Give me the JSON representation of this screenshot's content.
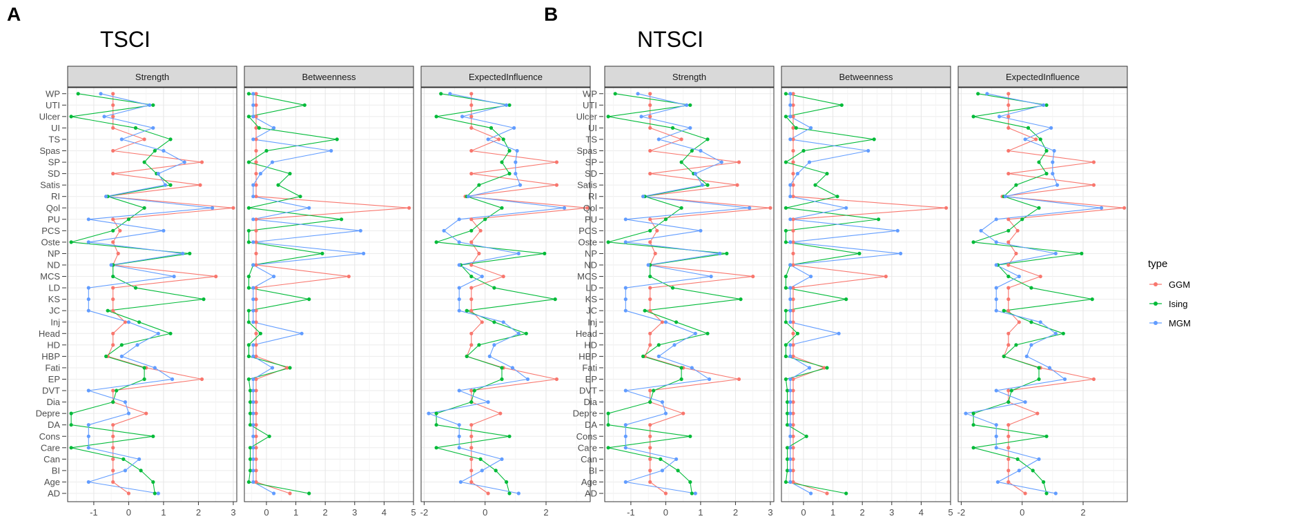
{
  "chart_data": {
    "type": "line",
    "row_labels": [
      "AD",
      "Age",
      "BI",
      "Can",
      "Care",
      "Cons",
      "DA",
      "Depre",
      "Dia",
      "DVT",
      "EP",
      "Fati",
      "HBP",
      "HD",
      "Head",
      "Inj",
      "JC",
      "KS",
      "LD",
      "MCS",
      "ND",
      "NP",
      "Oste",
      "PCS",
      "PU",
      "Qol",
      "RI",
      "Satis",
      "SD",
      "SP",
      "Spas",
      "TS",
      "UI",
      "Ulcer",
      "UTI",
      "WP"
    ],
    "series": [
      {
        "name": "GGM",
        "color": "#F8766D"
      },
      {
        "name": "Ising",
        "color": "#00BA38"
      },
      {
        "name": "MGM",
        "color": "#619CFF"
      }
    ],
    "legend_title": "type",
    "legend_position": "right",
    "plots": [
      {
        "letter": "A",
        "title": "TSCI",
        "facets": [
          {
            "name": "Strength",
            "xlim": [
              -1.75,
              3.1
            ],
            "xticks": [
              -1,
              0,
              1,
              2,
              3
            ],
            "values": {
              "GGM": [
                0.0,
                -0.45,
                -0.45,
                -0.45,
                -0.45,
                -0.45,
                -0.45,
                0.5,
                -0.45,
                -0.45,
                2.1,
                0.5,
                -0.6,
                -0.45,
                -0.45,
                -0.1,
                -0.45,
                -0.45,
                -0.45,
                2.5,
                -0.45,
                -0.3,
                -0.45,
                -0.25,
                -0.45,
                3.0,
                -0.65,
                2.05,
                -0.45,
                2.1,
                -0.45,
                0.45,
                -0.45,
                -0.45,
                -0.45,
                -0.45
              ],
              "Ising": [
                0.75,
                0.7,
                0.35,
                -0.15,
                -1.65,
                0.7,
                -1.65,
                -1.65,
                -0.45,
                -0.35,
                0.45,
                0.45,
                -0.65,
                -0.2,
                1.2,
                0.3,
                -0.6,
                2.15,
                0.2,
                -0.45,
                -0.45,
                1.75,
                -1.65,
                -0.45,
                0.0,
                0.45,
                -0.6,
                1.2,
                0.8,
                0.45,
                0.75,
                1.2,
                0.2,
                -1.65,
                0.7,
                -1.45
              ],
              "MGM": [
                0.85,
                -1.15,
                -0.1,
                0.3,
                -1.15,
                -1.15,
                -1.15,
                0.0,
                -0.1,
                -1.15,
                1.25,
                0.75,
                -0.2,
                0.25,
                0.85,
                0.0,
                -1.15,
                -1.15,
                -1.15,
                1.3,
                -0.5,
                1.55,
                -1.15,
                1.0,
                -1.15,
                2.4,
                -0.65,
                1.05,
                0.85,
                1.6,
                1.0,
                -0.2,
                0.7,
                -0.7,
                0.6,
                -0.8
              ]
            }
          },
          {
            "name": "Betweenness",
            "xlim": [
              -0.75,
              5.0
            ],
            "xticks": [
              0,
              1,
              2,
              3,
              4,
              5
            ],
            "values": {
              "GGM": [
                0.8,
                -0.35,
                -0.35,
                -0.35,
                -0.35,
                -0.35,
                -0.35,
                -0.35,
                -0.35,
                -0.35,
                -0.35,
                0.7,
                -0.35,
                -0.35,
                -0.35,
                -0.35,
                -0.35,
                -0.35,
                -0.35,
                2.8,
                -0.35,
                -0.35,
                -0.35,
                -0.35,
                -0.35,
                4.85,
                -0.35,
                -0.35,
                -0.35,
                -0.35,
                -0.35,
                -0.35,
                -0.35,
                -0.35,
                -0.35,
                -0.35
              ],
              "Ising": [
                1.45,
                -0.6,
                -0.55,
                -0.55,
                -0.55,
                0.1,
                -0.55,
                -0.55,
                -0.55,
                -0.55,
                -0.6,
                0.8,
                -0.6,
                -0.6,
                -0.2,
                -0.6,
                -0.6,
                1.45,
                -0.6,
                -0.6,
                -0.45,
                1.9,
                -0.6,
                -0.6,
                2.55,
                -0.6,
                1.15,
                0.4,
                0.8,
                -0.6,
                0.0,
                2.4,
                -0.25,
                -0.6,
                1.3,
                -0.6
              ],
              "MGM": [
                0.25,
                -0.45,
                -0.45,
                -0.45,
                -0.45,
                -0.45,
                -0.45,
                -0.45,
                -0.45,
                -0.45,
                -0.45,
                0.2,
                -0.45,
                -0.45,
                1.2,
                -0.45,
                -0.45,
                -0.45,
                -0.45,
                0.25,
                -0.45,
                3.3,
                -0.45,
                3.2,
                -0.45,
                1.45,
                -0.45,
                -0.45,
                -0.2,
                0.2,
                2.2,
                -0.45,
                0.25,
                -0.45,
                -0.45,
                -0.45
              ]
            }
          },
          {
            "name": "ExpectedInfluence",
            "xlim": [
              -2.1,
              3.45
            ],
            "xticks": [
              -2,
              0,
              2
            ],
            "values": {
              "GGM": [
                0.1,
                -0.45,
                -0.45,
                -0.45,
                -0.45,
                -0.45,
                -0.45,
                0.5,
                -0.45,
                -0.45,
                2.35,
                0.6,
                -0.6,
                -0.45,
                -0.45,
                -0.1,
                -0.45,
                -0.45,
                -0.45,
                0.6,
                -0.45,
                -0.2,
                -0.45,
                -0.15,
                -0.45,
                3.35,
                -0.65,
                2.35,
                -0.45,
                2.35,
                -0.45,
                0.45,
                -0.45,
                -0.45,
                -0.45,
                -0.45
              ],
              "Ising": [
                0.8,
                0.7,
                0.35,
                -0.15,
                -1.6,
                0.8,
                -1.6,
                -1.6,
                -0.45,
                -0.35,
                0.55,
                0.55,
                -0.6,
                -0.2,
                1.35,
                0.3,
                -0.6,
                2.3,
                0.3,
                -0.45,
                -0.8,
                1.95,
                -1.6,
                -0.45,
                0.0,
                0.55,
                -0.6,
                -0.2,
                0.8,
                0.55,
                0.8,
                0.6,
                0.2,
                -1.6,
                0.8,
                -1.45
              ],
              "MGM": [
                1.1,
                -0.8,
                -0.1,
                0.55,
                -0.85,
                -0.85,
                -0.85,
                -1.85,
                0.1,
                -0.85,
                1.4,
                0.9,
                0.15,
                0.3,
                1.1,
                0.6,
                -0.85,
                -0.85,
                -0.85,
                -0.1,
                -0.85,
                1.1,
                -0.85,
                -1.35,
                -0.85,
                2.6,
                -0.55,
                1.15,
                1.0,
                1.0,
                1.05,
                0.1,
                0.95,
                -0.75,
                0.7,
                -1.15
              ]
            }
          }
        ]
      },
      {
        "letter": "B",
        "title": "NTSCI",
        "facets": [
          {
            "name": "Strength",
            "xlim": [
              -1.75,
              3.1
            ],
            "xticks": [
              -1,
              0,
              1,
              2,
              3
            ],
            "values": {
              "GGM": [
                0.0,
                -0.45,
                -0.45,
                -0.45,
                -0.45,
                -0.45,
                -0.45,
                0.5,
                -0.45,
                -0.45,
                2.1,
                0.5,
                -0.6,
                -0.45,
                -0.45,
                -0.1,
                -0.45,
                -0.45,
                -0.45,
                2.5,
                -0.45,
                -0.3,
                -0.45,
                -0.25,
                -0.45,
                3.0,
                -0.65,
                2.05,
                -0.45,
                2.1,
                -0.45,
                0.45,
                -0.45,
                -0.45,
                -0.45,
                -0.45
              ],
              "Ising": [
                0.75,
                0.7,
                0.35,
                -0.15,
                -1.65,
                0.7,
                -1.65,
                -1.65,
                -0.45,
                -0.35,
                0.45,
                0.45,
                -0.65,
                -0.2,
                1.2,
                0.3,
                -0.6,
                2.15,
                0.2,
                -0.45,
                -0.45,
                1.75,
                -1.65,
                -0.45,
                0.0,
                0.45,
                -0.6,
                1.2,
                0.8,
                0.45,
                0.75,
                1.2,
                0.2,
                -1.65,
                0.7,
                -1.45
              ],
              "MGM": [
                0.85,
                -1.15,
                -0.1,
                0.3,
                -1.15,
                -1.15,
                -1.15,
                0.0,
                -0.1,
                -1.15,
                1.25,
                0.75,
                -0.2,
                0.25,
                0.85,
                0.0,
                -1.15,
                -1.15,
                -1.15,
                1.3,
                -0.5,
                1.55,
                -1.15,
                1.0,
                -1.15,
                2.4,
                -0.65,
                1.05,
                0.85,
                1.6,
                1.0,
                -0.2,
                0.7,
                -0.7,
                0.6,
                -0.8
              ]
            }
          },
          {
            "name": "Betweenness",
            "xlim": [
              -0.75,
              5.0
            ],
            "xticks": [
              0,
              1,
              2,
              3,
              4,
              5
            ],
            "values": {
              "GGM": [
                0.8,
                -0.35,
                -0.35,
                -0.35,
                -0.35,
                -0.35,
                -0.35,
                -0.35,
                -0.35,
                -0.35,
                -0.35,
                0.7,
                -0.35,
                -0.35,
                -0.35,
                -0.35,
                -0.35,
                -0.35,
                -0.35,
                2.8,
                -0.35,
                -0.35,
                -0.35,
                -0.35,
                -0.35,
                4.85,
                -0.35,
                -0.35,
                -0.35,
                -0.35,
                -0.35,
                -0.35,
                -0.35,
                -0.35,
                -0.35,
                -0.35
              ],
              "Ising": [
                1.45,
                -0.6,
                -0.55,
                -0.55,
                -0.55,
                0.1,
                -0.55,
                -0.55,
                -0.55,
                -0.55,
                -0.6,
                0.8,
                -0.6,
                -0.6,
                -0.2,
                -0.6,
                -0.6,
                1.45,
                -0.6,
                -0.6,
                -0.45,
                1.9,
                -0.6,
                -0.6,
                2.55,
                -0.6,
                1.15,
                0.4,
                0.8,
                -0.6,
                0.0,
                2.4,
                -0.25,
                -0.6,
                1.3,
                -0.6
              ],
              "MGM": [
                0.25,
                -0.45,
                -0.45,
                -0.45,
                -0.45,
                -0.45,
                -0.45,
                -0.45,
                -0.45,
                -0.45,
                -0.45,
                0.2,
                -0.45,
                -0.45,
                1.2,
                -0.45,
                -0.45,
                -0.45,
                -0.45,
                0.25,
                -0.45,
                3.3,
                -0.45,
                3.2,
                -0.45,
                1.45,
                -0.45,
                -0.45,
                -0.2,
                0.2,
                2.2,
                -0.45,
                0.25,
                -0.45,
                -0.45,
                -0.45
              ]
            }
          },
          {
            "name": "ExpectedInfluence",
            "xlim": [
              -2.1,
              3.45
            ],
            "xticks": [
              -2,
              0,
              2
            ],
            "values": {
              "GGM": [
                0.1,
                -0.45,
                -0.45,
                -0.45,
                -0.45,
                -0.45,
                -0.45,
                0.5,
                -0.45,
                -0.45,
                2.35,
                0.6,
                -0.6,
                -0.45,
                -0.45,
                -0.1,
                -0.45,
                -0.45,
                -0.45,
                0.6,
                -0.45,
                -0.2,
                -0.45,
                -0.15,
                -0.45,
                3.35,
                -0.65,
                2.35,
                -0.45,
                2.35,
                -0.45,
                0.45,
                -0.45,
                -0.45,
                -0.45,
                -0.45
              ],
              "Ising": [
                0.8,
                0.7,
                0.35,
                -0.15,
                -1.6,
                0.8,
                -1.6,
                -1.6,
                -0.45,
                -0.35,
                0.55,
                0.55,
                -0.6,
                -0.2,
                1.35,
                0.3,
                -0.6,
                2.3,
                0.3,
                -0.45,
                -0.8,
                1.95,
                -1.6,
                -0.45,
                0.0,
                0.55,
                -0.6,
                -0.2,
                0.8,
                0.55,
                0.8,
                0.6,
                0.2,
                -1.6,
                0.8,
                -1.45
              ],
              "MGM": [
                1.1,
                -0.8,
                -0.1,
                0.55,
                -0.85,
                -0.85,
                -0.85,
                -1.85,
                0.1,
                -0.85,
                1.4,
                0.9,
                0.15,
                0.3,
                1.1,
                0.6,
                -0.85,
                -0.85,
                -0.85,
                -0.1,
                -0.85,
                1.1,
                -0.85,
                -1.35,
                -0.85,
                2.6,
                -0.55,
                1.15,
                1.0,
                1.0,
                1.05,
                0.1,
                0.95,
                -0.75,
                0.7,
                -1.15
              ]
            }
          }
        ]
      }
    ]
  }
}
